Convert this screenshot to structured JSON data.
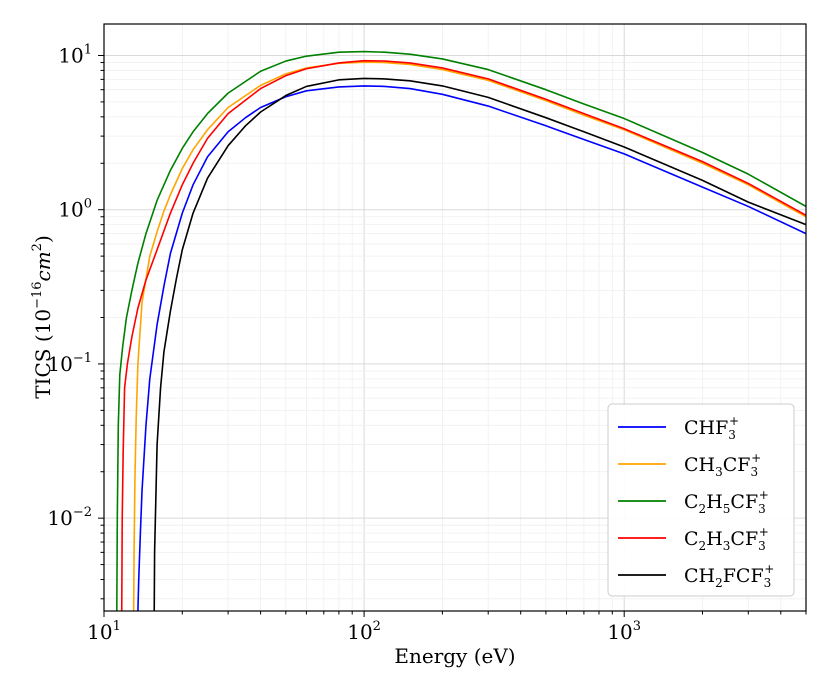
{
  "chart_data": {
    "type": "line",
    "title": "",
    "xlabel": "Energy (eV)",
    "ylabel": "TICS (10^-16 cm^2)",
    "ylabel_parts": {
      "base": "TICS (10",
      "exp": "−16",
      "unit": "cm",
      "unit_exp": "2",
      "close": ")"
    },
    "xscale": "log",
    "yscale": "log",
    "xlim": [
      10,
      5000
    ],
    "ylim": [
      0.0025,
      16
    ],
    "grid": true,
    "legend_position": "lower-right",
    "x_ticks": [
      {
        "base": "10",
        "exp": "1"
      },
      {
        "base": "10",
        "exp": "2"
      },
      {
        "base": "10",
        "exp": "3"
      }
    ],
    "y_ticks": [
      {
        "base": "10",
        "exp": "−2"
      },
      {
        "base": "10",
        "exp": "−1"
      },
      {
        "base": "10",
        "exp": "0"
      },
      {
        "base": "10",
        "exp": "1"
      }
    ],
    "series": [
      {
        "name": "CHF3+",
        "label_parts": [
          {
            "t": "CHF"
          },
          {
            "sub": "3"
          },
          {
            "sup": "+"
          }
        ],
        "color": "#0000ff",
        "threshold": 13.5,
        "x": [
          13.5,
          13.6,
          13.8,
          14.0,
          14.5,
          15,
          16,
          17,
          18,
          20,
          22,
          25,
          30,
          35,
          40,
          50,
          60,
          80,
          100,
          120,
          150,
          200,
          300,
          500,
          700,
          1000,
          2000,
          3000,
          5000
        ],
        "y": [
          0.0025,
          0.004,
          0.008,
          0.015,
          0.04,
          0.08,
          0.18,
          0.32,
          0.52,
          0.95,
          1.45,
          2.2,
          3.2,
          3.95,
          4.6,
          5.4,
          5.9,
          6.25,
          6.35,
          6.3,
          6.1,
          5.6,
          4.7,
          3.5,
          2.85,
          2.3,
          1.4,
          1.05,
          0.7
        ]
      },
      {
        "name": "CH3CF3+",
        "label_parts": [
          {
            "t": "CH"
          },
          {
            "sub": "3"
          },
          {
            "t": "CF"
          },
          {
            "sub": "3"
          },
          {
            "sup": "+"
          }
        ],
        "color": "#ffa500",
        "threshold": 13.0,
        "x": [
          13.0,
          13.05,
          13.15,
          13.3,
          13.5,
          14,
          15,
          16,
          17,
          18,
          20,
          22,
          25,
          30,
          40,
          50,
          60,
          80,
          100,
          120,
          150,
          200,
          300,
          500,
          700,
          1000,
          2000,
          3000,
          5000
        ],
        "y": [
          0.0025,
          0.006,
          0.018,
          0.045,
          0.1,
          0.25,
          0.5,
          0.72,
          0.98,
          1.25,
          1.85,
          2.45,
          3.3,
          4.6,
          6.4,
          7.6,
          8.3,
          8.9,
          9.05,
          9.0,
          8.75,
          8.1,
          6.9,
          5.1,
          4.1,
          3.3,
          2.0,
          1.45,
          0.9
        ]
      },
      {
        "name": "C2H5CF3+",
        "label_parts": [
          {
            "t": "C"
          },
          {
            "sub": "2"
          },
          {
            "t": "H"
          },
          {
            "sub": "5"
          },
          {
            "t": "CF"
          },
          {
            "sub": "3"
          },
          {
            "sup": "+"
          }
        ],
        "color": "#008000",
        "threshold": 11.2,
        "x": [
          11.2,
          11.25,
          11.35,
          11.5,
          11.8,
          12.2,
          12.8,
          13.5,
          14.5,
          16,
          18,
          20,
          22,
          25,
          30,
          40,
          50,
          60,
          80,
          100,
          120,
          150,
          200,
          300,
          500,
          700,
          1000,
          2000,
          3000,
          5000
        ],
        "y": [
          0.0025,
          0.01,
          0.04,
          0.085,
          0.13,
          0.2,
          0.3,
          0.45,
          0.7,
          1.15,
          1.8,
          2.5,
          3.2,
          4.2,
          5.7,
          7.9,
          9.2,
          9.9,
          10.5,
          10.6,
          10.5,
          10.2,
          9.5,
          8.1,
          6.0,
          4.85,
          3.9,
          2.35,
          1.7,
          1.05
        ]
      },
      {
        "name": "C2H3CF3+",
        "label_parts": [
          {
            "t": "C"
          },
          {
            "sub": "2"
          },
          {
            "t": "H"
          },
          {
            "sub": "3"
          },
          {
            "t": "CF"
          },
          {
            "sub": "3"
          },
          {
            "sup": "+"
          }
        ],
        "color": "#ff0000",
        "threshold": 11.7,
        "x": [
          11.7,
          11.75,
          11.85,
          12.0,
          12.3,
          12.8,
          13.5,
          14.5,
          16,
          18,
          20,
          22,
          25,
          30,
          40,
          50,
          60,
          80,
          100,
          120,
          150,
          200,
          300,
          500,
          700,
          1000,
          2000,
          3000,
          5000
        ],
        "y": [
          0.0025,
          0.01,
          0.027,
          0.07,
          0.1,
          0.15,
          0.23,
          0.35,
          0.55,
          0.95,
          1.45,
          2.0,
          2.9,
          4.2,
          6.1,
          7.4,
          8.2,
          8.95,
          9.25,
          9.2,
          8.95,
          8.3,
          7.05,
          5.2,
          4.2,
          3.35,
          2.05,
          1.48,
          0.92
        ]
      },
      {
        "name": "CH2FCF3+",
        "label_parts": [
          {
            "t": "CH"
          },
          {
            "sub": "2"
          },
          {
            "t": "FCF"
          },
          {
            "sub": "3"
          },
          {
            "sup": "+"
          }
        ],
        "color": "#000000",
        "threshold": 15.6,
        "x": [
          15.6,
          15.65,
          15.8,
          16.0,
          16.5,
          17,
          18,
          19,
          20,
          22,
          25,
          30,
          35,
          40,
          50,
          60,
          80,
          100,
          120,
          150,
          200,
          300,
          500,
          700,
          1000,
          2000,
          3000,
          5000
        ],
        "y": [
          0.0025,
          0.006,
          0.012,
          0.03,
          0.07,
          0.12,
          0.22,
          0.36,
          0.55,
          0.95,
          1.6,
          2.6,
          3.5,
          4.3,
          5.5,
          6.3,
          6.95,
          7.1,
          7.05,
          6.85,
          6.35,
          5.35,
          3.95,
          3.2,
          2.55,
          1.55,
          1.12,
          0.8
        ]
      }
    ]
  }
}
